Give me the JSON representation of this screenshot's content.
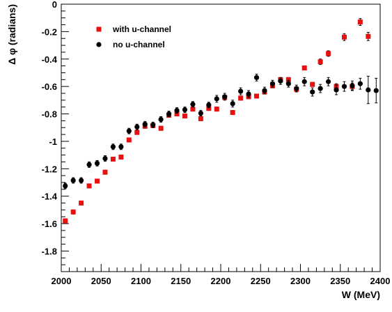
{
  "chart_data": {
    "type": "scatter",
    "xlabel": "W (MeV)",
    "ylabel": "Δ φ (radians)",
    "xlim": [
      2000,
      2400
    ],
    "ylim": [
      -1.95,
      0
    ],
    "xticks": [
      2000,
      2050,
      2100,
      2150,
      2200,
      2250,
      2300,
      2350,
      2400
    ],
    "xtick_labels": [
      "2000",
      "2050",
      "2100",
      "2150",
      "2200",
      "2250",
      "2300",
      "2350",
      "2400"
    ],
    "yticks": [
      0,
      -0.2,
      -0.4,
      -0.6,
      -0.8,
      -1,
      -1.2,
      -1.4,
      -1.6,
      -1.8
    ],
    "ytick_labels": [
      "0",
      "-0.2",
      "-0.4",
      "-0.6",
      "-0.8",
      "-1",
      "-1.2",
      "-1.4",
      "-1.6",
      "-1.8"
    ],
    "grid": false,
    "legend_position": "top-left",
    "series": [
      {
        "name": "with u-channel",
        "marker": "square",
        "color": "#e8110f",
        "x": [
          2005,
          2015,
          2025,
          2035,
          2045,
          2055,
          2065,
          2075,
          2085,
          2095,
          2105,
          2115,
          2125,
          2135,
          2145,
          2155,
          2165,
          2175,
          2185,
          2195,
          2205,
          2215,
          2225,
          2235,
          2245,
          2255,
          2265,
          2275,
          2285,
          2295,
          2305,
          2315,
          2325,
          2335,
          2345,
          2355,
          2365,
          2375,
          2385
        ],
        "y": [
          -1.58,
          -1.515,
          -1.45,
          -1.325,
          -1.29,
          -1.225,
          -1.13,
          -1.115,
          -0.99,
          -0.935,
          -0.89,
          -0.885,
          -0.905,
          -0.81,
          -0.8,
          -0.815,
          -0.765,
          -0.835,
          -0.76,
          -0.765,
          -0.68,
          -0.79,
          -0.685,
          -0.675,
          -0.67,
          -0.64,
          -0.595,
          -0.55,
          -0.55,
          -0.62,
          -0.465,
          -0.585,
          -0.42,
          -0.36,
          -0.6,
          -0.24,
          -0.6,
          -0.13,
          -0.235
        ],
        "err": [
          0.015,
          0.015,
          0.015,
          0.015,
          0.015,
          0.015,
          0.015,
          0.015,
          0.015,
          0.015,
          0.015,
          0.015,
          0.015,
          0.015,
          0.015,
          0.015,
          0.015,
          0.015,
          0.015,
          0.015,
          0.015,
          0.015,
          0.015,
          0.015,
          0.015,
          0.015,
          0.015,
          0.015,
          0.015,
          0.015,
          0.015,
          0.015,
          0.02,
          0.02,
          0.02,
          0.025,
          0.025,
          0.025,
          0.03
        ]
      },
      {
        "name": "no u-channel",
        "marker": "circle",
        "color": "#000000",
        "x": [
          2005,
          2015,
          2025,
          2035,
          2045,
          2055,
          2065,
          2075,
          2085,
          2095,
          2105,
          2115,
          2125,
          2135,
          2145,
          2155,
          2165,
          2175,
          2185,
          2195,
          2205,
          2215,
          2225,
          2235,
          2245,
          2255,
          2265,
          2275,
          2285,
          2295,
          2305,
          2315,
          2325,
          2335,
          2345,
          2355,
          2365,
          2375,
          2385,
          2395
        ],
        "y": [
          -1.325,
          -1.285,
          -1.285,
          -1.17,
          -1.16,
          -1.125,
          -1.04,
          -1.04,
          -0.925,
          -0.895,
          -0.875,
          -0.88,
          -0.84,
          -0.8,
          -0.775,
          -0.77,
          -0.73,
          -0.795,
          -0.735,
          -0.69,
          -0.675,
          -0.725,
          -0.635,
          -0.655,
          -0.535,
          -0.63,
          -0.58,
          -0.56,
          -0.58,
          -0.615,
          -0.565,
          -0.64,
          -0.615,
          -0.565,
          -0.625,
          -0.6,
          -0.595,
          -0.58,
          -0.625,
          -0.63
        ],
        "err": [
          0.02,
          0.02,
          0.02,
          0.02,
          0.02,
          0.02,
          0.02,
          0.02,
          0.02,
          0.02,
          0.02,
          0.02,
          0.02,
          0.02,
          0.02,
          0.02,
          0.02,
          0.02,
          0.02,
          0.025,
          0.025,
          0.025,
          0.025,
          0.025,
          0.025,
          0.025,
          0.025,
          0.025,
          0.025,
          0.025,
          0.03,
          0.03,
          0.03,
          0.03,
          0.035,
          0.035,
          0.035,
          0.04,
          0.1,
          0.09
        ]
      }
    ]
  }
}
